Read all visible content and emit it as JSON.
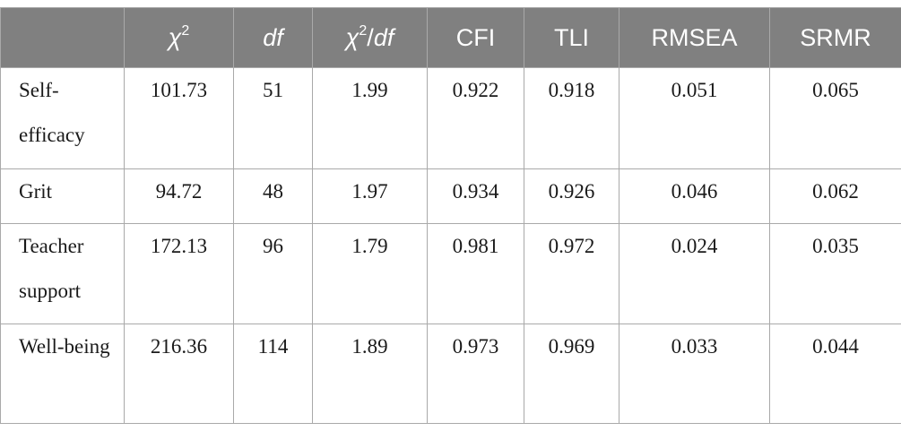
{
  "table": {
    "header": [
      [
        "χ",
        "2"
      ],
      [
        "df"
      ],
      [
        "χ",
        "2",
        "/",
        "df"
      ],
      [
        "CFI"
      ],
      [
        "TLI"
      ],
      [
        "RMSEA"
      ],
      [
        "SRMR"
      ]
    ],
    "rows": [
      [
        "Self-efficacy",
        "101.73",
        "51",
        "1.99",
        "0.922",
        "0.918",
        "0.051",
        "0.065"
      ],
      [
        "Grit",
        "94.72",
        "48",
        "1.97",
        "0.934",
        "0.926",
        "0.046",
        "0.062"
      ],
      [
        "Teacher support",
        "172.13",
        "96",
        "1.79",
        "0.981",
        "0.972",
        "0.024",
        "0.035"
      ],
      [
        "Well-being",
        "216.36",
        "114",
        "1.89",
        "0.973",
        "0.969",
        "0.033",
        "0.044"
      ]
    ]
  }
}
